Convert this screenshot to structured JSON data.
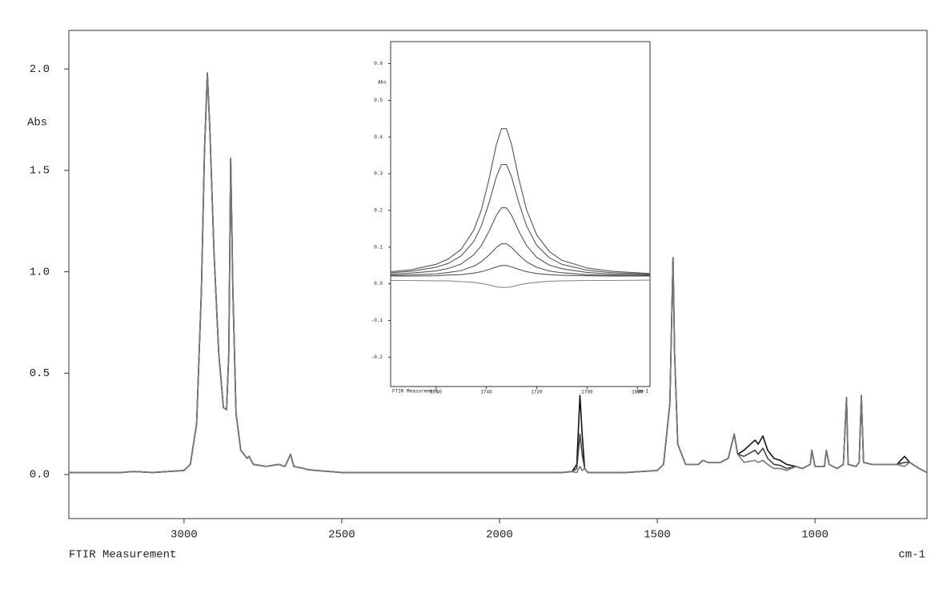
{
  "chart_data": [
    {
      "type": "line",
      "y_label": "Abs",
      "x_label": "FTIR Measurement",
      "x_unit": "cm-1",
      "xlim": [
        3365,
        645
      ],
      "ylim": [
        -0.217,
        2.19
      ],
      "xticks": [
        3000,
        2500,
        2000,
        1500,
        1000
      ],
      "yticks": [
        {
          "value": 0,
          "label": "0.0"
        },
        0.5,
        {
          "value": 1,
          "label": "1.0"
        },
        1.5,
        {
          "value": 2,
          "label": "2.0"
        }
      ],
      "x": [
        3365,
        3200,
        3160,
        3100,
        3000,
        2980,
        2960,
        2945,
        2935,
        2926,
        2918,
        2905,
        2890,
        2875,
        2865,
        2858,
        2852,
        2845,
        2835,
        2820,
        2800,
        2794,
        2780,
        2740,
        2700,
        2680,
        2662,
        2652,
        2620,
        2610,
        2580,
        2500,
        2300,
        2000,
        1800,
        1770,
        1755,
        1745,
        1738,
        1730,
        1720,
        1600,
        1500,
        1480,
        1460,
        1450,
        1445,
        1435,
        1410,
        1370,
        1355,
        1340,
        1300,
        1275,
        1256,
        1245,
        1225,
        1190,
        1180,
        1165,
        1150,
        1130,
        1110,
        1090,
        1060,
        1040,
        1015,
        1010,
        1000,
        970,
        964,
        955,
        930,
        910,
        900,
        895,
        870,
        860,
        853,
        846,
        820,
        780,
        740,
        716,
        700,
        670,
        645
      ],
      "series": [
        {
          "color": "#111111",
          "values": [
            0.01,
            0.01,
            0.015,
            0.01,
            0.02,
            0.05,
            0.25,
            0.9,
            1.6,
            1.98,
            1.7,
            1.1,
            0.6,
            0.33,
            0.32,
            0.6,
            1.56,
            0.9,
            0.3,
            0.12,
            0.08,
            0.09,
            0.05,
            0.04,
            0.05,
            0.04,
            0.1,
            0.04,
            0.03,
            0.025,
            0.02,
            0.01,
            0.01,
            0.01,
            0.01,
            0.015,
            0.05,
            0.39,
            0.2,
            0.03,
            0.01,
            0.01,
            0.02,
            0.05,
            0.35,
            1.07,
            0.6,
            0.15,
            0.05,
            0.05,
            0.07,
            0.06,
            0.06,
            0.08,
            0.2,
            0.1,
            0.12,
            0.17,
            0.15,
            0.19,
            0.12,
            0.08,
            0.07,
            0.05,
            0.04,
            0.03,
            0.05,
            0.12,
            0.04,
            0.04,
            0.12,
            0.05,
            0.03,
            0.05,
            0.38,
            0.05,
            0.04,
            0.06,
            0.39,
            0.06,
            0.05,
            0.05,
            0.05,
            0.09,
            0.06,
            0.03,
            0.01
          ]
        },
        {
          "color": "#444444",
          "values": [
            0.01,
            0.01,
            0.015,
            0.01,
            0.02,
            0.05,
            0.25,
            0.9,
            1.6,
            1.98,
            1.7,
            1.1,
            0.6,
            0.33,
            0.32,
            0.6,
            1.56,
            0.9,
            0.3,
            0.12,
            0.08,
            0.09,
            0.05,
            0.04,
            0.05,
            0.04,
            0.1,
            0.04,
            0.03,
            0.025,
            0.02,
            0.01,
            0.01,
            0.01,
            0.01,
            0.015,
            0.03,
            0.2,
            0.1,
            0.03,
            0.01,
            0.01,
            0.02,
            0.05,
            0.35,
            1.07,
            0.6,
            0.15,
            0.05,
            0.05,
            0.07,
            0.06,
            0.06,
            0.08,
            0.2,
            0.1,
            0.09,
            0.12,
            0.1,
            0.13,
            0.08,
            0.05,
            0.045,
            0.03,
            0.04,
            0.03,
            0.05,
            0.12,
            0.04,
            0.04,
            0.12,
            0.05,
            0.03,
            0.05,
            0.38,
            0.05,
            0.04,
            0.06,
            0.39,
            0.06,
            0.05,
            0.05,
            0.05,
            0.06,
            0.06,
            0.03,
            0.01
          ]
        },
        {
          "color": "#777777",
          "values": [
            0.01,
            0.01,
            0.015,
            0.01,
            0.02,
            0.05,
            0.25,
            0.9,
            1.6,
            1.98,
            1.7,
            1.1,
            0.6,
            0.33,
            0.32,
            0.6,
            1.56,
            0.9,
            0.3,
            0.12,
            0.08,
            0.09,
            0.05,
            0.04,
            0.05,
            0.04,
            0.1,
            0.04,
            0.03,
            0.025,
            0.02,
            0.01,
            0.01,
            0.01,
            0.01,
            0.015,
            0.01,
            0.04,
            0.02,
            0.03,
            0.01,
            0.01,
            0.02,
            0.05,
            0.35,
            1.07,
            0.6,
            0.15,
            0.05,
            0.05,
            0.07,
            0.06,
            0.06,
            0.08,
            0.2,
            0.1,
            0.06,
            0.07,
            0.06,
            0.07,
            0.05,
            0.03,
            0.03,
            0.02,
            0.04,
            0.03,
            0.05,
            0.12,
            0.04,
            0.04,
            0.12,
            0.05,
            0.03,
            0.05,
            0.38,
            0.05,
            0.04,
            0.06,
            0.39,
            0.06,
            0.05,
            0.05,
            0.05,
            0.04,
            0.06,
            0.03,
            0.01
          ]
        }
      ]
    },
    {
      "type": "line",
      "y_label": "Abs",
      "x_label": "FTIR Measurement",
      "x_unit": "cm-1",
      "xlim": [
        1778,
        1675
      ],
      "ylim": [
        -0.28,
        0.66
      ],
      "xticks": [
        1760,
        1740,
        1720,
        1700,
        1680
      ],
      "yticks": [
        -0.2,
        -0.1,
        {
          "value": 0,
          "label": "0.0"
        },
        0.1,
        0.2,
        0.3,
        0.4,
        0.5,
        0.6
      ],
      "x": [
        1778,
        1770,
        1760,
        1755,
        1750,
        1745,
        1742,
        1739,
        1736,
        1734,
        1732,
        1730,
        1727,
        1724,
        1720,
        1715,
        1710,
        1700,
        1690,
        1675
      ],
      "series": [
        {
          "color": "#555555",
          "values": [
            0.033,
            0.038,
            0.053,
            0.068,
            0.094,
            0.146,
            0.201,
            0.283,
            0.38,
            0.423,
            0.423,
            0.38,
            0.283,
            0.201,
            0.133,
            0.088,
            0.064,
            0.043,
            0.034,
            0.028
          ]
        },
        {
          "color": "#555555",
          "values": [
            0.03,
            0.034,
            0.045,
            0.056,
            0.076,
            0.115,
            0.157,
            0.219,
            0.292,
            0.325,
            0.325,
            0.292,
            0.219,
            0.157,
            0.105,
            0.071,
            0.053,
            0.037,
            0.03,
            0.026
          ]
        },
        {
          "color": "#555555",
          "values": [
            0.026,
            0.029,
            0.035,
            0.042,
            0.054,
            0.079,
            0.104,
            0.142,
            0.187,
            0.207,
            0.207,
            0.187,
            0.142,
            0.104,
            0.072,
            0.051,
            0.041,
            0.031,
            0.026,
            0.024
          ]
        },
        {
          "color": "#555555",
          "values": [
            0.023,
            0.024,
            0.027,
            0.031,
            0.036,
            0.048,
            0.06,
            0.078,
            0.099,
            0.109,
            0.109,
            0.099,
            0.078,
            0.06,
            0.045,
            0.035,
            0.03,
            0.025,
            0.023,
            0.022
          ]
        },
        {
          "color": "#555555",
          "values": [
            0.021,
            0.021,
            0.022,
            0.024,
            0.025,
            0.029,
            0.033,
            0.039,
            0.046,
            0.05,
            0.05,
            0.046,
            0.039,
            0.033,
            0.028,
            0.025,
            0.023,
            0.022,
            0.021,
            0.021
          ]
        },
        {
          "color": "#888888",
          "values": [
            0.009,
            0.009,
            0.008,
            0.008,
            0.006,
            0.004,
            0.001,
            -0.003,
            -0.008,
            -0.01,
            -0.01,
            -0.008,
            -0.003,
            0.001,
            0.004,
            0.007,
            0.008,
            0.009,
            0.009,
            0.01
          ]
        }
      ]
    }
  ]
}
